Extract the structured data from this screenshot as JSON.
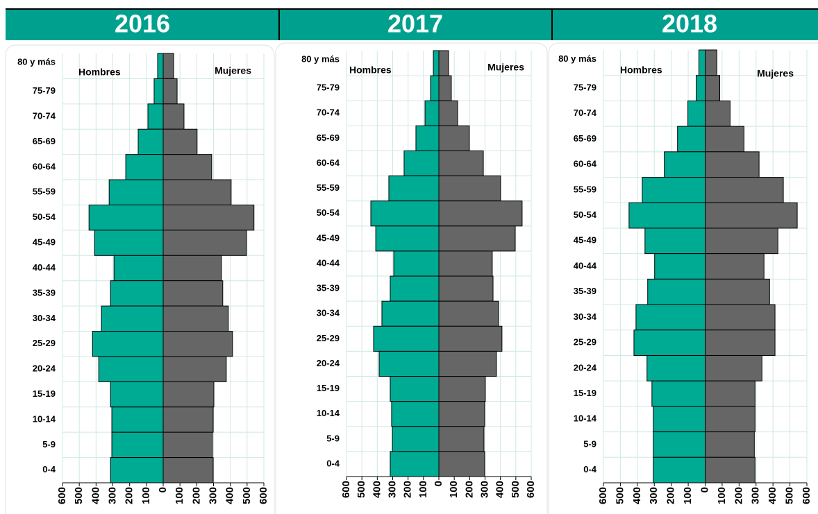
{
  "chart_data": [
    {
      "type": "pyramid",
      "title": "2016",
      "categories": [
        "80 y más",
        "75-79",
        "70-74",
        "65-69",
        "60-64",
        "55-59",
        "50-54",
        "45-49",
        "40-44",
        "35-39",
        "30-34",
        "25-29",
        "20-24",
        "15-19",
        "10-14",
        "5-9",
        "0-4"
      ],
      "series": [
        {
          "name": "Hombres",
          "color": "#00ab94",
          "values": [
            -33,
            -54,
            -91,
            -149,
            -223,
            -322,
            -442,
            -409,
            -293,
            -314,
            -368,
            -421,
            -384,
            -314,
            -306,
            -306,
            -314
          ]
        },
        {
          "name": "Mujeres",
          "color": "#666666",
          "values": [
            62,
            83,
            124,
            202,
            289,
            405,
            541,
            496,
            347,
            355,
            388,
            413,
            376,
            302,
            298,
            293,
            298
          ]
        }
      ],
      "xlim": [
        -600,
        600
      ],
      "xticks": [
        {
          "value": -600,
          "label": "600"
        },
        {
          "value": -500,
          "label": "500"
        },
        {
          "value": -400,
          "label": "400"
        },
        {
          "value": -300,
          "label": "300"
        },
        {
          "value": -200,
          "label": "200"
        },
        {
          "value": -100,
          "label": "100"
        },
        0,
        100,
        200,
        300,
        400,
        500,
        600
      ],
      "grid": true
    },
    {
      "type": "pyramid",
      "title": "2017",
      "categories": [
        "80 y más",
        "75-79",
        "70-74",
        "65-69",
        "60-64",
        "55-59",
        "50-54",
        "45-49",
        "40-44",
        "35-39",
        "30-34",
        "25-29",
        "20-24",
        "15-19",
        "10-14",
        "5-9",
        "0-4"
      ],
      "series": [
        {
          "name": "Hombres",
          "color": "#00ab94",
          "values": [
            -36,
            -54,
            -90,
            -149,
            -226,
            -325,
            -442,
            -410,
            -293,
            -316,
            -370,
            -424,
            -388,
            -316,
            -307,
            -302,
            -316
          ]
        },
        {
          "name": "Mujeres",
          "color": "#666666",
          "values": [
            63,
            81,
            122,
            198,
            289,
            401,
            541,
            496,
            347,
            352,
            388,
            410,
            374,
            302,
            298,
            293,
            298
          ]
        }
      ],
      "xlim": [
        -600,
        600
      ],
      "xticks": [
        {
          "value": -600,
          "label": "600"
        },
        {
          "value": -500,
          "label": "500"
        },
        {
          "value": -400,
          "label": "400"
        },
        {
          "value": -300,
          "label": "300"
        },
        {
          "value": -200,
          "label": "200"
        },
        {
          "value": -100,
          "label": "100"
        },
        0,
        100,
        200,
        300,
        400,
        500,
        600
      ],
      "grid": true
    },
    {
      "type": "pyramid",
      "title": "2018",
      "categories": [
        "80 y más",
        "75-79",
        "70-74",
        "65-69",
        "60-64",
        "55-59",
        "50-54",
        "45-49",
        "40-44",
        "35-39",
        "30-34",
        "25-29",
        "20-24",
        "15-19",
        "10-14",
        "5-9",
        "0-4"
      ],
      "series": [
        {
          "name": "Hombres",
          "color": "#00ab94",
          "values": [
            -37,
            -53,
            -102,
            -163,
            -241,
            -371,
            -449,
            -355,
            -298,
            -339,
            -408,
            -420,
            -343,
            -314,
            -306,
            -306,
            -306
          ]
        },
        {
          "name": "Mujeres",
          "color": "#666666",
          "values": [
            69,
            86,
            147,
            229,
            318,
            461,
            543,
            429,
            347,
            380,
            412,
            412,
            335,
            294,
            294,
            290,
            294
          ]
        }
      ],
      "xlim": [
        -600,
        600
      ],
      "xticks": [
        {
          "value": -600,
          "label": "600"
        },
        {
          "value": -500,
          "label": "500"
        },
        {
          "value": -400,
          "label": "400"
        },
        {
          "value": -300,
          "label": "300"
        },
        {
          "value": -200,
          "label": "200"
        },
        {
          "value": -100,
          "label": "100"
        },
        0,
        100,
        200,
        300,
        400,
        500,
        600
      ],
      "grid": true
    }
  ]
}
